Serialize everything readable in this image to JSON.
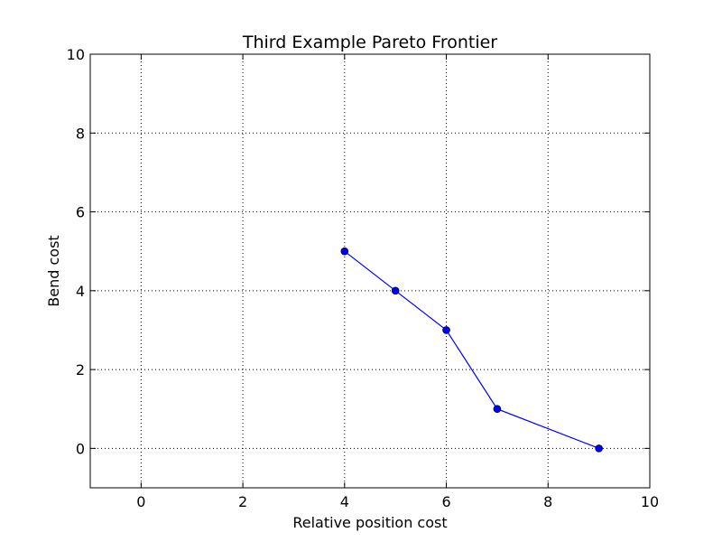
{
  "chart_data": {
    "type": "line",
    "title": "Third Example Pareto Frontier",
    "xlabel": "Relative position cost",
    "ylabel": "Bend cost",
    "xlim": [
      -1,
      10
    ],
    "ylim": [
      -1,
      10
    ],
    "xticks": [
      0,
      2,
      4,
      6,
      8,
      10
    ],
    "yticks": [
      0,
      2,
      4,
      6,
      8,
      10
    ],
    "grid": true,
    "grid_style": "dotted",
    "legend": false,
    "series": [
      {
        "color": "#0000ff",
        "marker": "circle",
        "points": [
          {
            "x": 4,
            "y": 5
          },
          {
            "x": 5,
            "y": 4
          },
          {
            "x": 6,
            "y": 3
          },
          {
            "x": 7,
            "y": 1
          },
          {
            "x": 9,
            "y": 0
          }
        ]
      }
    ]
  }
}
